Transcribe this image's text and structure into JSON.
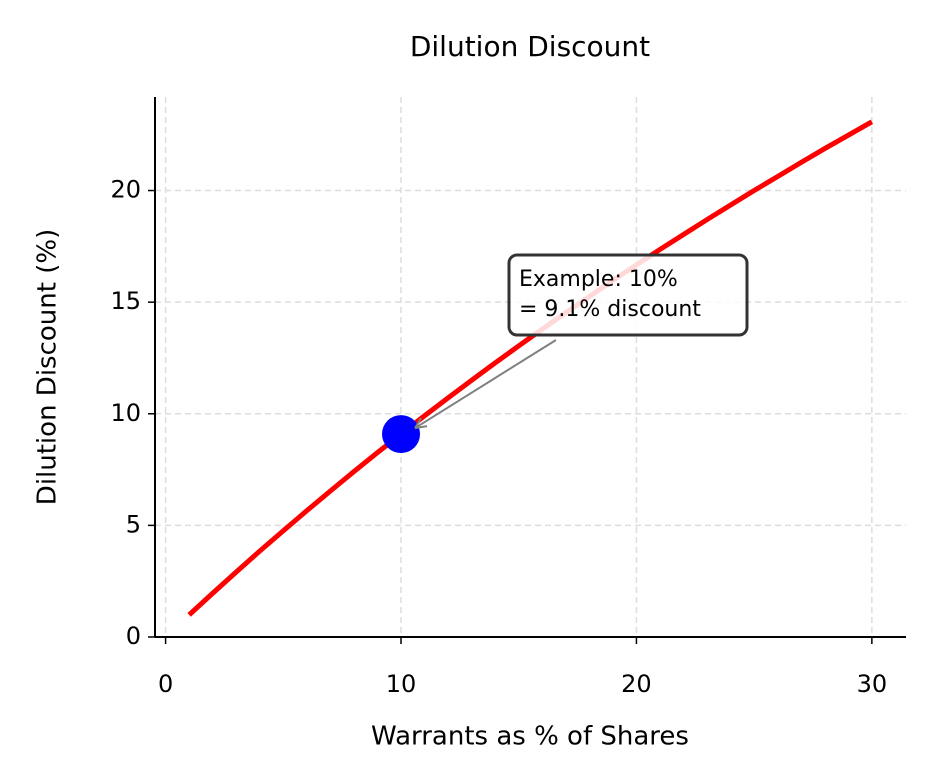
{
  "chart_data": {
    "type": "line",
    "title": "Dilution Discount",
    "xlabel": "Warrants as % of Shares",
    "ylabel": "Dilution Discount (%)",
    "x": [
      1,
      2,
      3,
      4,
      5,
      6,
      7,
      8,
      9,
      10,
      11,
      12,
      13,
      14,
      15,
      16,
      17,
      18,
      19,
      20,
      21,
      22,
      23,
      24,
      25,
      26,
      27,
      28,
      29,
      30
    ],
    "series": [
      {
        "name": "Dilution Discount",
        "color": "#ff0000",
        "values": [
          0.99,
          1.96,
          2.91,
          3.85,
          4.76,
          5.66,
          6.54,
          7.41,
          8.26,
          9.09,
          9.91,
          10.71,
          11.5,
          12.28,
          13.04,
          13.79,
          14.53,
          15.25,
          15.97,
          16.67,
          17.36,
          18.03,
          18.7,
          19.35,
          20.0,
          20.63,
          21.26,
          21.88,
          22.48,
          23.08
        ]
      }
    ],
    "highlight": {
      "x": 10,
      "y": 9.09,
      "color": "#0000ff"
    },
    "annotation": {
      "lines": [
        "Example: 10%",
        "= 9.1% discount"
      ],
      "x": 10,
      "y": 9.09
    },
    "xlim": [
      -0.45,
      31.45
    ],
    "ylim": [
      0,
      24.19
    ],
    "xticks": [
      0,
      10,
      20,
      30
    ],
    "yticks": [
      0,
      5,
      10,
      15,
      20
    ],
    "grid": true
  }
}
